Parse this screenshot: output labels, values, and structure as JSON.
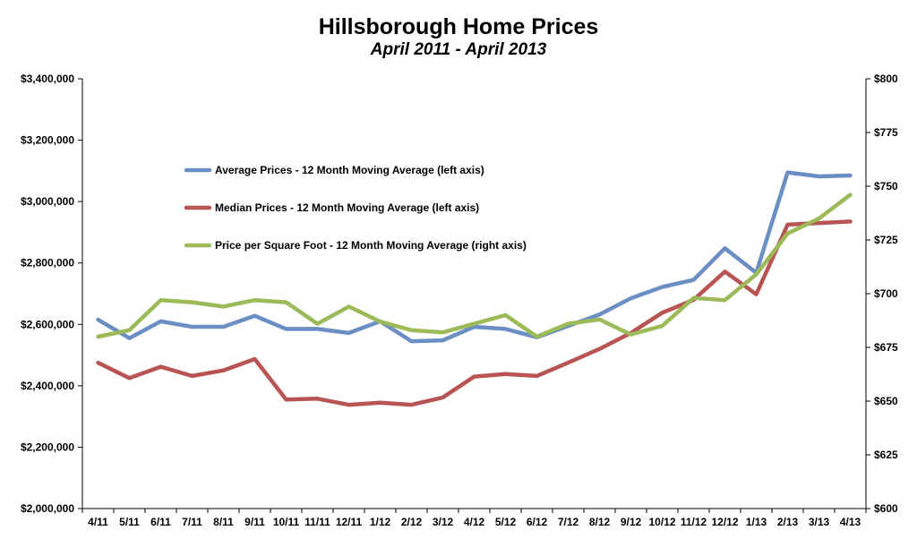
{
  "chart_data": {
    "type": "line",
    "title": "Hillsborough Home Prices",
    "subtitle": "April 2011 - April 2013",
    "categories": [
      "4/11",
      "5/11",
      "6/11",
      "7/11",
      "8/11",
      "9/11",
      "10/11",
      "11/11",
      "12/11",
      "1/12",
      "2/12",
      "3/12",
      "4/12",
      "5/12",
      "6/12",
      "7/12",
      "8/12",
      "9/12",
      "10/12",
      "11/12",
      "12/12",
      "1/13",
      "2/13",
      "3/13",
      "4/13"
    ],
    "y_left": {
      "min": 2000000,
      "max": 3400000,
      "step": 200000,
      "tick_labels": [
        "$2,000,000",
        "$2,200,000",
        "$2,400,000",
        "$2,600,000",
        "$2,800,000",
        "$3,000,000",
        "$3,200,000",
        "$3,400,000"
      ]
    },
    "y_right": {
      "min": 600,
      "max": 800,
      "step": 25,
      "tick_labels": [
        "$600",
        "$625",
        "$650",
        "$675",
        "$700",
        "$725",
        "$750",
        "$775",
        "$800"
      ]
    },
    "legend_position": "upper-left",
    "grid": false,
    "series": [
      {
        "name": "Average Prices - 12 Month Moving Average (left axis)",
        "axis": "left",
        "color": "#6a8fc4",
        "values": [
          2615000,
          2555000,
          2610000,
          2592000,
          2592000,
          2628000,
          2585000,
          2585000,
          2572000,
          2610000,
          2545000,
          2548000,
          2592000,
          2585000,
          2558000,
          2595000,
          2632000,
          2685000,
          2722000,
          2745000,
          2848000,
          2768000,
          3095000,
          3082000,
          3085000
        ]
      },
      {
        "name": "Median Prices - 12 Month Moving Average (left axis)",
        "axis": "left",
        "color": "#b85454",
        "values": [
          2475000,
          2425000,
          2462000,
          2432000,
          2450000,
          2487000,
          2355000,
          2358000,
          2338000,
          2345000,
          2338000,
          2362000,
          2430000,
          2438000,
          2432000,
          2475000,
          2520000,
          2572000,
          2638000,
          2680000,
          2772000,
          2698000,
          2925000,
          2930000,
          2935000
        ]
      },
      {
        "name": "Price per Square Foot - 12 Month Moving Average (right axis)",
        "axis": "right",
        "color": "#9cbb58",
        "values": [
          680,
          683,
          697,
          696,
          694,
          697,
          696,
          686,
          694,
          687,
          683,
          682,
          686,
          690,
          680,
          686,
          688,
          681,
          685,
          698,
          697,
          709,
          728,
          735,
          746
        ]
      }
    ]
  }
}
